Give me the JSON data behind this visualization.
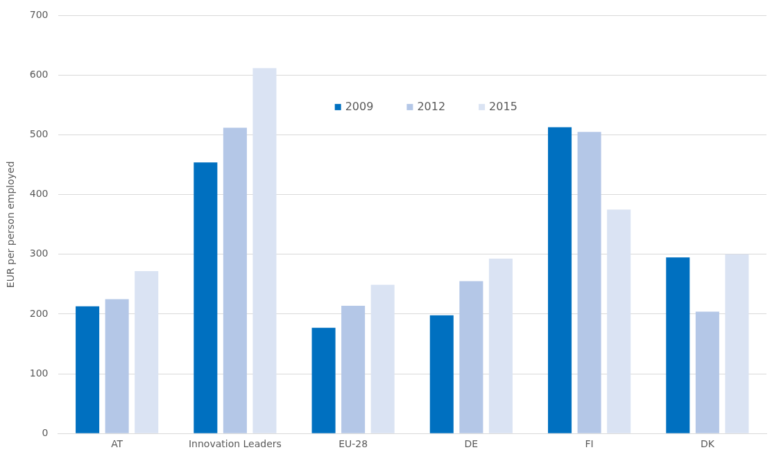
{
  "chart_data": {
    "type": "bar",
    "ylabel": "EUR per person employed",
    "categories": [
      "AT",
      "Innovation Leaders",
      "EU-28",
      "DE",
      "FI",
      "DK"
    ],
    "series": [
      {
        "name": "2009",
        "color": "#0070c0",
        "values": [
          213,
          454,
          177,
          198,
          513,
          295
        ]
      },
      {
        "name": "2012",
        "color": "#b4c7e7",
        "values": [
          225,
          512,
          214,
          255,
          505,
          204
        ]
      },
      {
        "name": "2015",
        "color": "#dae3f3",
        "values": [
          272,
          612,
          249,
          293,
          375,
          300
        ]
      }
    ],
    "ylim": [
      0,
      700
    ],
    "yticks": [
      0,
      100,
      200,
      300,
      400,
      500,
      600,
      700
    ],
    "grid": "y",
    "legend": "top"
  }
}
